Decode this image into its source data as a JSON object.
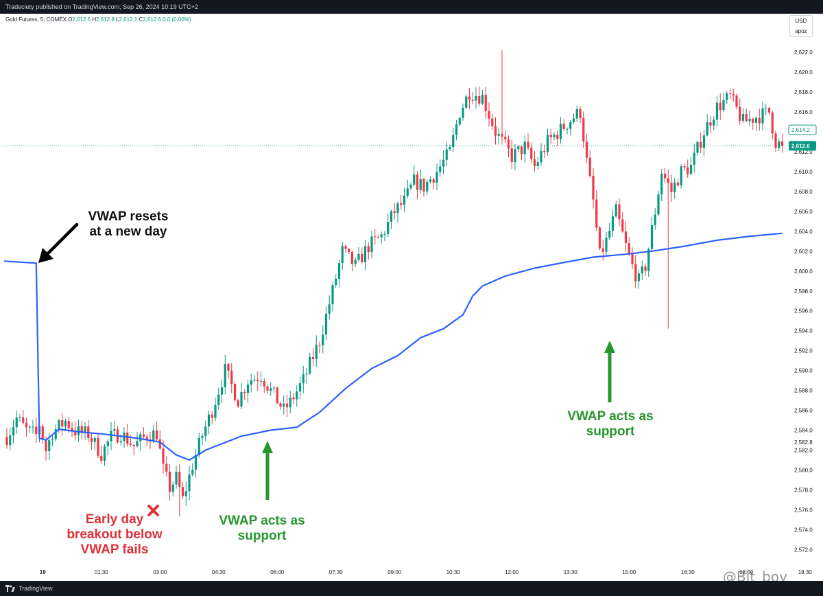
{
  "header": {
    "published": "Tradeciety published on TradingView.com, Sep 26, 2024 10:19 UTC+2",
    "symbol": "Gold Futures, 5, COMEX",
    "o_label": "O",
    "o": "2,612.6",
    "h_label": "H",
    "h": "2,612.8",
    "l_label": "L",
    "l": "2,612.1",
    "c_label": "C",
    "c": "2,612.6",
    "change": "0.0 (0.00%)"
  },
  "currency_box": {
    "currency": "USD",
    "mode": "apoz"
  },
  "footer": {
    "brand": "TradingView"
  },
  "watermark": "@Bit_boy",
  "annotations": {
    "vwap_reset_line1": "VWAP resets",
    "vwap_reset_line2": "at a new day",
    "fail_line1": "Early day",
    "fail_line2": "breakout below",
    "fail_line3": "VWAP fails",
    "support1_line1": "VWAP acts as",
    "support1_line2": "support",
    "support2_line1": "VWAP acts as",
    "support2_line2": "support"
  },
  "colors": {
    "up": "#089981",
    "down": "#f23645",
    "vwap": "#2962ff",
    "last_price_tag": "#089981",
    "annotation_green": "#27962e",
    "annotation_red": "#e0303a"
  },
  "chart_data": {
    "type": "candlestick",
    "timeframe": "5",
    "y_ticks": [
      2572,
      2574,
      2576,
      2578,
      2580,
      2582,
      2582.8,
      2584,
      2586,
      2588,
      2590,
      2592,
      2594,
      2596,
      2598,
      2600,
      2602,
      2604,
      2606,
      2608,
      2610,
      2612,
      2614,
      2616,
      2618,
      2620,
      2622
    ],
    "y_tick_labels": [
      "2,572.0",
      "2,574.0",
      "2,576.0",
      "2,578.0",
      "2,580.0",
      "2,582.0",
      "2,582.8",
      "2,584.0",
      "2,586.0",
      "2,588.0",
      "2,590.0",
      "2,592.0",
      "2,594.0",
      "2,596.0",
      "2,598.0",
      "2,600.0",
      "2,602.0",
      "2,604.0",
      "2,606.0",
      "2,608.0",
      "2,610.0",
      "2,612.0",
      "2,614.0",
      "2,616.0",
      "2,618.0",
      "2,620.0",
      "2,622.0"
    ],
    "ylim": [
      2570.5,
      2624.5
    ],
    "x_tick_labels": [
      {
        "i": 11,
        "label": "19",
        "bold": true
      },
      {
        "i": 29,
        "label": "01:30"
      },
      {
        "i": 47,
        "label": "03:00"
      },
      {
        "i": 65,
        "label": "04:30"
      },
      {
        "i": 83,
        "label": "06:00"
      },
      {
        "i": 101,
        "label": "07:30"
      },
      {
        "i": 119,
        "label": "09:00"
      },
      {
        "i": 137,
        "label": "10:30"
      },
      {
        "i": 155,
        "label": "12:00"
      },
      {
        "i": 173,
        "label": "13:30"
      },
      {
        "i": 191,
        "label": "15:00"
      },
      {
        "i": 209,
        "label": "16:30"
      },
      {
        "i": 227,
        "label": "18:00"
      },
      {
        "i": 245,
        "label": "19:30"
      }
    ],
    "last_price": 2612.6,
    "last_price_label": "2,612.6",
    "secondary_price_label": "2,614.2",
    "price_anchors": [
      [
        0,
        2583.3
      ],
      [
        3,
        2585.2
      ],
      [
        6,
        2584.0
      ],
      [
        9,
        2583.5
      ],
      [
        10,
        2584.6
      ],
      [
        12,
        2582.0
      ],
      [
        14,
        2583.8
      ],
      [
        18,
        2584.9
      ],
      [
        21,
        2583.9
      ],
      [
        25,
        2583.6
      ],
      [
        29,
        2581.6
      ],
      [
        32,
        2583.3
      ],
      [
        35,
        2583.7
      ],
      [
        39,
        2582.4
      ],
      [
        43,
        2583.5
      ],
      [
        46,
        2583.7
      ],
      [
        48,
        2580.0
      ],
      [
        50,
        2578.2
      ],
      [
        52,
        2579.2
      ],
      [
        54,
        2577.0
      ],
      [
        57,
        2580.5
      ],
      [
        60,
        2583.5
      ],
      [
        63,
        2586.0
      ],
      [
        67,
        2590.0
      ],
      [
        71,
        2587.0
      ],
      [
        74,
        2589.0
      ],
      [
        78,
        2589.5
      ],
      [
        81,
        2588.0
      ],
      [
        85,
        2586.0
      ],
      [
        87,
        2586.8
      ],
      [
        91,
        2589.0
      ],
      [
        96,
        2593.0
      ],
      [
        100,
        2598.0
      ],
      [
        103,
        2602.0
      ],
      [
        107,
        2600.5
      ],
      [
        111,
        2602.5
      ],
      [
        115,
        2603.5
      ],
      [
        119,
        2606.0
      ],
      [
        122,
        2607.0
      ],
      [
        125,
        2609.0
      ],
      [
        128,
        2608.5
      ],
      [
        132,
        2610.0
      ],
      [
        136,
        2612.0
      ],
      [
        139,
        2616.0
      ],
      [
        142,
        2618.0
      ],
      [
        146,
        2617.5
      ],
      [
        150,
        2614.0
      ],
      [
        155,
        2611.5
      ],
      [
        159,
        2612.5
      ],
      [
        162,
        2610.5
      ],
      [
        166,
        2613.0
      ],
      [
        170,
        2614.2
      ],
      [
        174,
        2615.5
      ],
      [
        176,
        2616.0
      ],
      [
        178,
        2611.0
      ],
      [
        180,
        2607.0
      ],
      [
        182,
        2601.5
      ],
      [
        184,
        2603.0
      ],
      [
        187,
        2606.0
      ],
      [
        190,
        2602.5
      ],
      [
        192,
        2600.5
      ],
      [
        194,
        2599.0
      ],
      [
        196,
        2600.5
      ],
      [
        199,
        2606.0
      ],
      [
        201,
        2610.0
      ],
      [
        204,
        2608.0
      ],
      [
        207,
        2610.0
      ],
      [
        210,
        2610.5
      ],
      [
        214,
        2614.0
      ],
      [
        218,
        2616.5
      ],
      [
        222,
        2617.5
      ],
      [
        226,
        2615.0
      ],
      [
        230,
        2615.5
      ],
      [
        234,
        2616.0
      ],
      [
        236,
        2613.0
      ],
      [
        238,
        2612.6
      ]
    ],
    "vwap_anchors": [
      [
        0,
        2601.0
      ],
      [
        9,
        2600.8
      ],
      [
        10,
        2583.2
      ],
      [
        12,
        2583.0
      ],
      [
        16,
        2584.1
      ],
      [
        23,
        2583.8
      ],
      [
        30,
        2583.6
      ],
      [
        40,
        2583.2
      ],
      [
        47,
        2582.8
      ],
      [
        52,
        2581.5
      ],
      [
        56,
        2581.0
      ],
      [
        61,
        2582.0
      ],
      [
        72,
        2583.4
      ],
      [
        81,
        2584.0
      ],
      [
        89,
        2584.3
      ],
      [
        96,
        2585.8
      ],
      [
        104,
        2588.2
      ],
      [
        112,
        2590.2
      ],
      [
        120,
        2591.5
      ],
      [
        127,
        2593.3
      ],
      [
        134,
        2594.2
      ],
      [
        140,
        2595.6
      ],
      [
        143,
        2597.5
      ],
      [
        146,
        2598.5
      ],
      [
        153,
        2599.5
      ],
      [
        162,
        2600.3
      ],
      [
        170,
        2600.8
      ],
      [
        180,
        2601.4
      ],
      [
        190,
        2601.7
      ],
      [
        198,
        2602.0
      ],
      [
        208,
        2602.5
      ],
      [
        218,
        2603.1
      ],
      [
        228,
        2603.5
      ],
      [
        238,
        2603.8
      ]
    ],
    "highlights": [
      {
        "i": 152,
        "high": 2622.2
      },
      {
        "i": 203,
        "low": 2594.2
      },
      {
        "i": 53,
        "low": 2575.3
      }
    ]
  }
}
